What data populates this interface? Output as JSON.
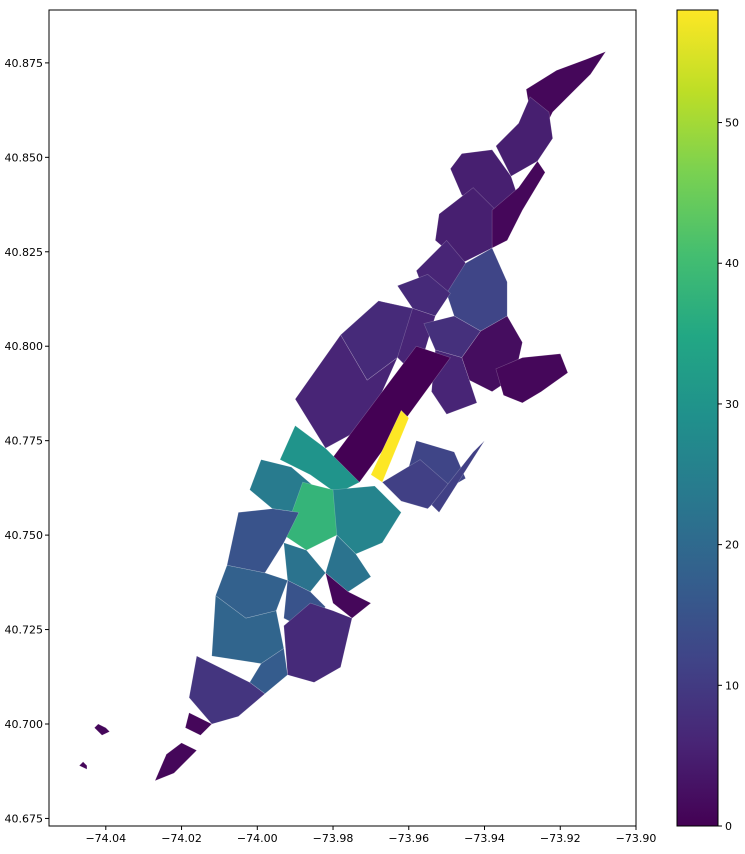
{
  "chart_data": {
    "type": "choropleth",
    "title": "",
    "xlabel": "",
    "ylabel": "",
    "xlim": [
      -74.055,
      -73.9
    ],
    "ylim": [
      40.673,
      40.889
    ],
    "x_ticks": [
      -74.04,
      -74.02,
      -74.0,
      -73.98,
      -73.96,
      -73.94,
      -73.92,
      -73.9
    ],
    "x_tick_labels": [
      "−74.04",
      "−74.02",
      "−74.00",
      "−73.98",
      "−73.96",
      "−73.94",
      "−73.92",
      "−73.90"
    ],
    "y_ticks": [
      40.675,
      40.7,
      40.725,
      40.75,
      40.775,
      40.8,
      40.825,
      40.85,
      40.875
    ],
    "y_tick_labels": [
      "40.675",
      "40.700",
      "40.725",
      "40.750",
      "40.775",
      "40.800",
      "40.825",
      "40.850",
      "40.875"
    ],
    "colormap": "viridis",
    "colorbar": {
      "min": 0,
      "max": 58,
      "ticks": [
        0,
        10,
        20,
        30,
        40,
        50
      ],
      "tick_labels": [
        "0",
        "10",
        "20",
        "30",
        "40",
        "50"
      ]
    },
    "regions": [
      {
        "id": "inwood",
        "value": 1,
        "polygon": [
          [
            -73.929,
            40.868
          ],
          [
            -73.921,
            40.873
          ],
          [
            -73.913,
            40.876
          ],
          [
            -73.908,
            40.878
          ],
          [
            -73.912,
            40.872
          ],
          [
            -73.917,
            40.867
          ],
          [
            -73.922,
            40.862
          ],
          [
            -73.925,
            40.856
          ],
          [
            -73.928,
            40.862
          ]
        ]
      },
      {
        "id": "fort-george",
        "value": 5,
        "polygon": [
          [
            -73.937,
            40.853
          ],
          [
            -73.931,
            40.859
          ],
          [
            -73.928,
            40.866
          ],
          [
            -73.923,
            40.862
          ],
          [
            -73.922,
            40.855
          ],
          [
            -73.926,
            40.849
          ],
          [
            -73.933,
            40.845
          ]
        ]
      },
      {
        "id": "washington-heights-n",
        "value": 5,
        "polygon": [
          [
            -73.946,
            40.851
          ],
          [
            -73.938,
            40.852
          ],
          [
            -73.933,
            40.845
          ],
          [
            -73.931,
            40.839
          ],
          [
            -73.938,
            40.836
          ],
          [
            -73.946,
            40.84
          ],
          [
            -73.949,
            40.847
          ]
        ]
      },
      {
        "id": "washington-heights-s",
        "value": 5,
        "polygon": [
          [
            -73.952,
            40.835
          ],
          [
            -73.943,
            40.842
          ],
          [
            -73.937,
            40.836
          ],
          [
            -73.938,
            40.826
          ],
          [
            -73.946,
            40.822
          ],
          [
            -73.953,
            40.828
          ]
        ]
      },
      {
        "id": "harlem-river-strip",
        "value": 1,
        "polygon": [
          [
            -73.938,
            40.836
          ],
          [
            -73.931,
            40.842
          ],
          [
            -73.926,
            40.849
          ],
          [
            -73.924,
            40.846
          ],
          [
            -73.93,
            40.836
          ],
          [
            -73.934,
            40.828
          ],
          [
            -73.938,
            40.826
          ]
        ]
      },
      {
        "id": "hamilton-heights",
        "value": 6,
        "polygon": [
          [
            -73.958,
            40.82
          ],
          [
            -73.95,
            40.828
          ],
          [
            -73.945,
            40.822
          ],
          [
            -73.949,
            40.814
          ],
          [
            -73.955,
            40.812
          ]
        ]
      },
      {
        "id": "central-harlem-n",
        "value": 12,
        "polygon": [
          [
            -73.945,
            40.822
          ],
          [
            -73.938,
            40.826
          ],
          [
            -73.934,
            40.817
          ],
          [
            -73.934,
            40.808
          ],
          [
            -73.941,
            40.804
          ],
          [
            -73.948,
            40.808
          ],
          [
            -73.95,
            40.814
          ]
        ]
      },
      {
        "id": "manhattanville",
        "value": 7,
        "polygon": [
          [
            -73.963,
            40.816
          ],
          [
            -73.955,
            40.819
          ],
          [
            -73.949,
            40.814
          ],
          [
            -73.953,
            40.808
          ],
          [
            -73.959,
            40.81
          ]
        ]
      },
      {
        "id": "morningside",
        "value": 6,
        "polygon": [
          [
            -73.968,
            40.812
          ],
          [
            -73.959,
            40.81
          ],
          [
            -73.953,
            40.808
          ],
          [
            -73.956,
            40.798
          ],
          [
            -73.961,
            40.795
          ],
          [
            -73.966,
            40.8
          ]
        ]
      },
      {
        "id": "central-harlem-s",
        "value": 8,
        "polygon": [
          [
            -73.956,
            40.806
          ],
          [
            -73.948,
            40.808
          ],
          [
            -73.941,
            40.804
          ],
          [
            -73.946,
            40.797
          ],
          [
            -73.953,
            40.799
          ]
        ]
      },
      {
        "id": "east-harlem-n",
        "value": 2,
        "polygon": [
          [
            -73.946,
            40.797
          ],
          [
            -73.941,
            40.804
          ],
          [
            -73.934,
            40.808
          ],
          [
            -73.93,
            40.801
          ],
          [
            -73.932,
            40.792
          ],
          [
            -73.938,
            40.788
          ],
          [
            -73.944,
            40.791
          ]
        ]
      },
      {
        "id": "east-harlem-s",
        "value": 6,
        "polygon": [
          [
            -73.953,
            40.799
          ],
          [
            -73.946,
            40.797
          ],
          [
            -73.944,
            40.791
          ],
          [
            -73.942,
            40.785
          ],
          [
            -73.95,
            40.782
          ],
          [
            -73.954,
            40.788
          ]
        ]
      },
      {
        "id": "upper-west-side-n",
        "value": 7,
        "polygon": [
          [
            -73.978,
            40.803
          ],
          [
            -73.968,
            40.812
          ],
          [
            -73.959,
            40.81
          ],
          [
            -73.963,
            40.797
          ],
          [
            -73.971,
            40.791
          ]
        ]
      },
      {
        "id": "upper-west-side-s",
        "value": 6,
        "polygon": [
          [
            -73.99,
            40.786
          ],
          [
            -73.978,
            40.803
          ],
          [
            -73.971,
            40.791
          ],
          [
            -73.963,
            40.797
          ],
          [
            -73.971,
            40.779
          ],
          [
            -73.982,
            40.773
          ]
        ]
      },
      {
        "id": "central-park",
        "value": 0,
        "polygon": [
          [
            -73.973,
            40.764
          ],
          [
            -73.982,
            40.768
          ],
          [
            -73.958,
            40.8
          ],
          [
            -73.949,
            40.797
          ]
        ]
      },
      {
        "id": "upper-east-side-n",
        "value": 58,
        "polygon": [
          [
            -73.962,
            40.783
          ],
          [
            -73.97,
            40.766
          ],
          [
            -73.967,
            40.764
          ],
          [
            -73.96,
            40.781
          ]
        ]
      },
      {
        "id": "upper-east-side-s",
        "value": 12,
        "polygon": [
          [
            -73.958,
            40.775
          ],
          [
            -73.948,
            40.772
          ],
          [
            -73.945,
            40.765
          ],
          [
            -73.952,
            40.761
          ],
          [
            -73.96,
            40.768
          ]
        ]
      },
      {
        "id": "lenox-hill",
        "value": 11,
        "polygon": [
          [
            -73.967,
            40.764
          ],
          [
            -73.957,
            40.77
          ],
          [
            -73.949,
            40.763
          ],
          [
            -73.955,
            40.757
          ],
          [
            -73.962,
            40.759
          ]
        ]
      },
      {
        "id": "roosevelt-island",
        "value": 11,
        "polygon": [
          [
            -73.943,
            40.772
          ],
          [
            -73.94,
            40.775
          ],
          [
            -73.952,
            40.756
          ],
          [
            -73.954,
            40.758
          ]
        ]
      },
      {
        "id": "lincoln-square",
        "value": 30,
        "polygon": [
          [
            -73.99,
            40.779
          ],
          [
            -73.982,
            40.773
          ],
          [
            -73.973,
            40.764
          ],
          [
            -73.979,
            40.761
          ],
          [
            -73.986,
            40.766
          ],
          [
            -73.994,
            40.77
          ]
        ]
      },
      {
        "id": "clinton",
        "value": 24,
        "polygon": [
          [
            -73.999,
            40.77
          ],
          [
            -73.991,
            40.768
          ],
          [
            -73.984,
            40.762
          ],
          [
            -73.989,
            40.756
          ],
          [
            -73.996,
            40.757
          ],
          [
            -74.002,
            40.762
          ]
        ]
      },
      {
        "id": "midtown-west",
        "value": 38,
        "polygon": [
          [
            -73.988,
            40.764
          ],
          [
            -73.98,
            40.762
          ],
          [
            -73.973,
            40.758
          ],
          [
            -73.979,
            40.75
          ],
          [
            -73.987,
            40.746
          ],
          [
            -73.993,
            40.75
          ]
        ]
      },
      {
        "id": "midtown-east",
        "value": 26,
        "polygon": [
          [
            -73.98,
            40.762
          ],
          [
            -73.969,
            40.763
          ],
          [
            -73.962,
            40.756
          ],
          [
            -73.967,
            40.748
          ],
          [
            -73.974,
            40.745
          ],
          [
            -73.979,
            40.75
          ]
        ]
      },
      {
        "id": "murray-hill",
        "value": 22,
        "polygon": [
          [
            -73.979,
            40.75
          ],
          [
            -73.974,
            40.745
          ],
          [
            -73.97,
            40.739
          ],
          [
            -73.976,
            40.735
          ],
          [
            -73.982,
            40.74
          ]
        ]
      },
      {
        "id": "chelsea",
        "value": 15,
        "polygon": [
          [
            -74.005,
            40.756
          ],
          [
            -73.996,
            40.757
          ],
          [
            -73.989,
            40.756
          ],
          [
            -73.993,
            40.748
          ],
          [
            -73.998,
            40.74
          ],
          [
            -74.008,
            40.742
          ]
        ]
      },
      {
        "id": "flatiron",
        "value": 22,
        "polygon": [
          [
            -73.993,
            40.748
          ],
          [
            -73.987,
            40.746
          ],
          [
            -73.982,
            40.74
          ],
          [
            -73.986,
            40.735
          ],
          [
            -73.992,
            40.738
          ]
        ]
      },
      {
        "id": "stuyvesant",
        "value": 1,
        "polygon": [
          [
            -73.982,
            40.74
          ],
          [
            -73.976,
            40.735
          ],
          [
            -73.97,
            40.732
          ],
          [
            -73.975,
            40.728
          ],
          [
            -73.98,
            40.732
          ]
        ]
      },
      {
        "id": "greenwich-village",
        "value": 18,
        "polygon": [
          [
            -74.008,
            40.742
          ],
          [
            -73.998,
            40.74
          ],
          [
            -73.992,
            40.738
          ],
          [
            -73.995,
            40.73
          ],
          [
            -74.003,
            40.728
          ],
          [
            -74.011,
            40.734
          ]
        ]
      },
      {
        "id": "east-village",
        "value": 15,
        "polygon": [
          [
            -73.992,
            40.738
          ],
          [
            -73.986,
            40.735
          ],
          [
            -73.982,
            40.731
          ],
          [
            -73.987,
            40.725
          ],
          [
            -73.993,
            40.728
          ]
        ]
      },
      {
        "id": "lower-east-side",
        "value": 7,
        "polygon": [
          [
            -73.993,
            40.726
          ],
          [
            -73.986,
            40.732
          ],
          [
            -73.98,
            40.73
          ],
          [
            -73.975,
            40.728
          ],
          [
            -73.978,
            40.715
          ],
          [
            -73.985,
            40.711
          ],
          [
            -73.992,
            40.713
          ]
        ]
      },
      {
        "id": "soho-tribeca",
        "value": 19,
        "polygon": [
          [
            -74.011,
            40.734
          ],
          [
            -74.003,
            40.728
          ],
          [
            -73.995,
            40.73
          ],
          [
            -73.993,
            40.72
          ],
          [
            -73.999,
            40.716
          ],
          [
            -74.012,
            40.718
          ]
        ]
      },
      {
        "id": "chinatown",
        "value": 17,
        "polygon": [
          [
            -73.999,
            40.716
          ],
          [
            -73.993,
            40.72
          ],
          [
            -73.992,
            40.713
          ],
          [
            -73.998,
            40.708
          ],
          [
            -74.002,
            40.711
          ]
        ]
      },
      {
        "id": "financial-district",
        "value": 9,
        "polygon": [
          [
            -74.016,
            40.718
          ],
          [
            -74.002,
            40.711
          ],
          [
            -73.998,
            40.708
          ],
          [
            -74.005,
            40.702
          ],
          [
            -74.012,
            40.7
          ],
          [
            -74.018,
            40.707
          ]
        ]
      },
      {
        "id": "battery-park",
        "value": 1,
        "polygon": [
          [
            -74.018,
            40.703
          ],
          [
            -74.012,
            40.7
          ],
          [
            -74.015,
            40.697
          ],
          [
            -74.019,
            40.699
          ]
        ]
      },
      {
        "id": "governors-island",
        "value": 1,
        "polygon": [
          [
            -74.016,
            40.693
          ],
          [
            -74.022,
            40.687
          ],
          [
            -74.027,
            40.685
          ],
          [
            -74.024,
            40.692
          ],
          [
            -74.02,
            40.695
          ]
        ]
      },
      {
        "id": "ellis-island",
        "value": 1,
        "polygon": [
          [
            -74.042,
            40.7
          ],
          [
            -74.04,
            40.699
          ],
          [
            -74.039,
            40.698
          ],
          [
            -74.041,
            40.697
          ],
          [
            -74.043,
            40.699
          ]
        ]
      },
      {
        "id": "liberty-island",
        "value": 1,
        "polygon": [
          [
            -74.046,
            40.69
          ],
          [
            -74.045,
            40.689
          ],
          [
            -74.045,
            40.688
          ],
          [
            -74.047,
            40.689
          ]
        ]
      },
      {
        "id": "randalls-island",
        "value": 1,
        "polygon": [
          [
            -73.937,
            40.794
          ],
          [
            -73.93,
            40.797
          ],
          [
            -73.92,
            40.798
          ],
          [
            -73.918,
            40.793
          ],
          [
            -73.925,
            40.788
          ],
          [
            -73.93,
            40.785
          ],
          [
            -73.935,
            40.787
          ]
        ]
      }
    ]
  }
}
